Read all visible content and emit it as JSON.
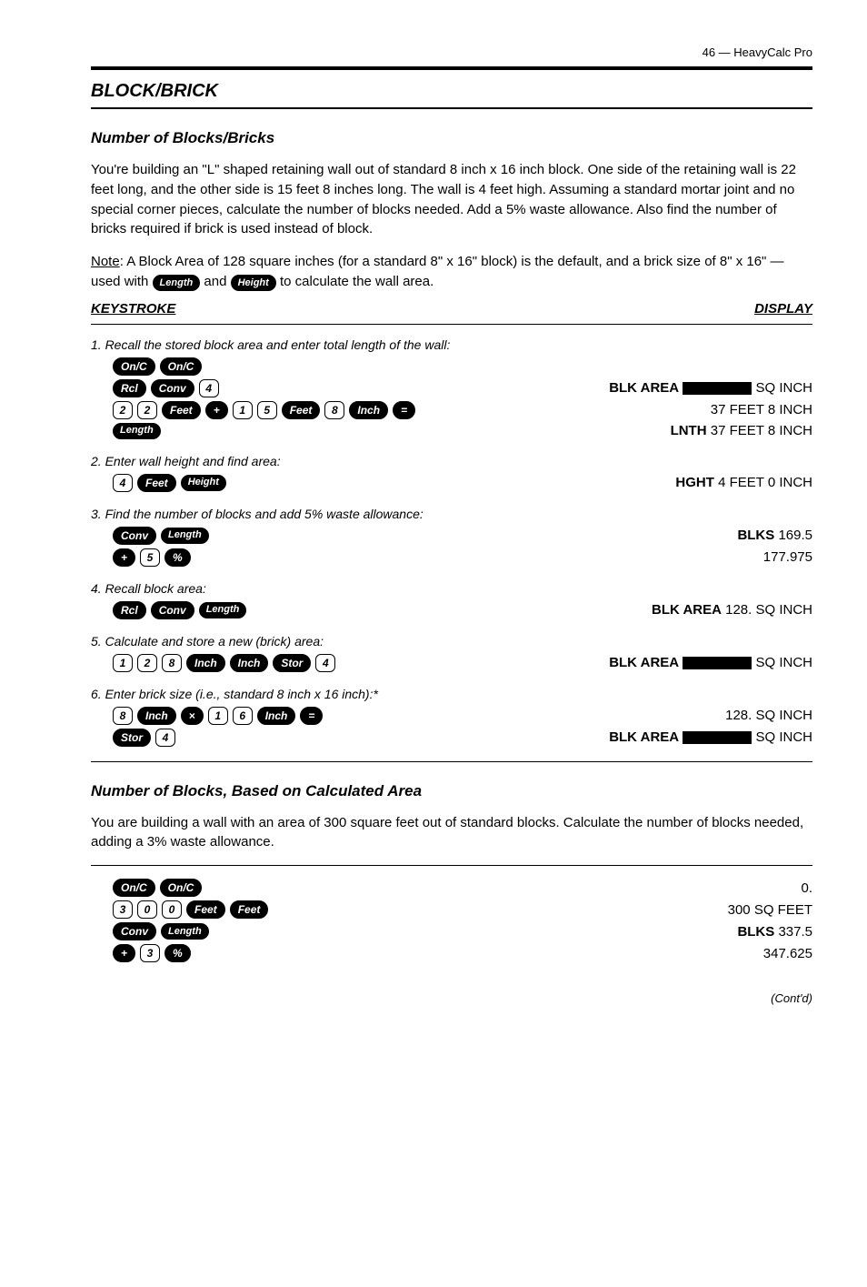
{
  "page_number": "46 — HeavyCalc Pro",
  "section_title": "BLOCK/BRICK",
  "example1": {
    "heading": "Number of Blocks/Bricks",
    "intro": "You're building an \"L\" shaped retaining wall out of standard 8 inch x 16 inch block. One side of the retaining wall is 22 feet long, and the other side is 15 feet 8 inches long. The wall is 4 feet high. Assuming a standard mortar joint and no special corner pieces, calculate the number of blocks needed. Add a 5% waste allowance. Also find the number of bricks required if brick is used instead of block.",
    "note_prefix": "Note",
    "note_text": ": A Block Area of 128 square inches (for a standard 8\" x 16\" block) is the default, and a brick size of 8\" x 16\" — used with ",
    "note_mid": " and ",
    "note_end": " to calculate the wall area.",
    "keystroke_hdr": "KEYSTROKE",
    "display_hdr": "DISPLAY",
    "steps": [
      {
        "label": "1. Recall the stored block area and enter total length of the wall:",
        "lines": [
          {
            "keys": [
              [
                "On/C",
                "b"
              ],
              [
                "On/C",
                "b"
              ]
            ],
            "result": ""
          },
          {
            "keys": [
              [
                "Rcl",
                "b"
              ],
              [
                "Conv",
                "b"
              ],
              [
                "4",
                "wn"
              ]
            ],
            "result_html": "<span class='bold'>BLK AREA</span> <span class='redact'></span> SQ INCH"
          },
          {
            "keys": [
              [
                "2",
                "wn"
              ],
              [
                "2",
                "wn"
              ],
              [
                "Feet",
                "b"
              ],
              [
                "+",
                "b"
              ],
              [
                "1",
                "wn"
              ],
              [
                "5",
                "wn"
              ],
              [
                "Feet",
                "b"
              ],
              [
                "8",
                "wn"
              ],
              [
                "Inch",
                "b"
              ],
              [
                "=",
                "b"
              ]
            ],
            "result": "37 FEET 8 INCH"
          },
          {
            "keys": [
              [
                "Length",
                "bs"
              ]
            ],
            "result_html": "<span class='bold'>LNTH</span> 37 FEET 8 INCH"
          }
        ]
      },
      {
        "label": "2. Enter wall height and find area:",
        "lines": [
          {
            "keys": [
              [
                "4",
                "wn"
              ],
              [
                "Feet",
                "b"
              ],
              [
                "Height",
                "bs"
              ]
            ],
            "result_html": "<span class='bold'>HGHT</span> 4 FEET 0 INCH"
          }
        ]
      },
      {
        "label": "3. Find the number of blocks and add 5% waste allowance:",
        "lines": [
          {
            "keys": [
              [
                "Conv",
                "b"
              ],
              [
                "Length",
                "bs"
              ]
            ],
            "result_html": "<span class='bold'>BLKS</span> 169.5"
          },
          {
            "keys": [
              [
                "+",
                "b"
              ],
              [
                "5",
                "wn"
              ],
              [
                "%",
                "b"
              ]
            ],
            "result": "177.975"
          }
        ]
      },
      {
        "label": "4. Recall block area:",
        "lines": [
          {
            "keys": [
              [
                "Rcl",
                "b"
              ],
              [
                "Conv",
                "b"
              ],
              [
                "Length",
                "bs"
              ]
            ],
            "result_html": "<span class='bold'>BLK AREA</span> 128. SQ INCH"
          }
        ]
      },
      {
        "label": "5. Calculate and store a new (brick) area:",
        "lines": [
          {
            "keys": [
              [
                "1",
                "wn"
              ],
              [
                "2",
                "wn"
              ],
              [
                "8",
                "wn"
              ],
              [
                "Inch",
                "b"
              ],
              [
                "Inch",
                "b"
              ],
              [
                "Stor",
                "b"
              ],
              [
                "4",
                "wn"
              ]
            ],
            "result_html": "<span class='bold'>BLK AREA</span> <span class='redact'></span> SQ INCH"
          }
        ]
      },
      {
        "label": "6. Enter brick size (i.e., standard 8 inch x 16 inch):*",
        "lines": [
          {
            "keys": [
              [
                "8",
                "wn"
              ],
              [
                "Inch",
                "b"
              ],
              [
                "×",
                "b"
              ],
              [
                "1",
                "wn"
              ],
              [
                "6",
                "wn"
              ],
              [
                "Inch",
                "b"
              ],
              [
                "=",
                "b"
              ]
            ],
            "result": "128. SQ INCH"
          },
          {
            "keys": [
              [
                "Stor",
                "b"
              ],
              [
                "4",
                "wn"
              ]
            ],
            "result_html": "<span class='bold'>BLK AREA</span> <span class='redact'></span> SQ INCH"
          }
        ]
      }
    ]
  },
  "example2": {
    "heading": "Number of Blocks, Based on Calculated Area",
    "intro": "You are building a wall with an area of 300 square feet out of standard blocks. Calculate the number of blocks needed, adding a 3% waste allowance.",
    "steps": [
      {
        "keys": [
          [
            "On/C",
            "b"
          ],
          [
            "On/C",
            "b"
          ]
        ],
        "result": "0."
      },
      {
        "keys": [
          [
            "3",
            "wn"
          ],
          [
            "0",
            "wn"
          ],
          [
            "0",
            "wn"
          ],
          [
            "Feet",
            "b"
          ],
          [
            "Feet",
            "b"
          ]
        ],
        "result": "300 SQ FEET"
      },
      {
        "keys": [
          [
            "Conv",
            "b"
          ],
          [
            "Length",
            "bs"
          ]
        ],
        "result_html": "<span class='bold'>BLKS</span> 337.5"
      },
      {
        "keys": [
          [
            "+",
            "b"
          ],
          [
            "3",
            "wn"
          ],
          [
            "%",
            "b"
          ]
        ],
        "result": "347.625"
      }
    ]
  },
  "continued": "(Cont'd)"
}
